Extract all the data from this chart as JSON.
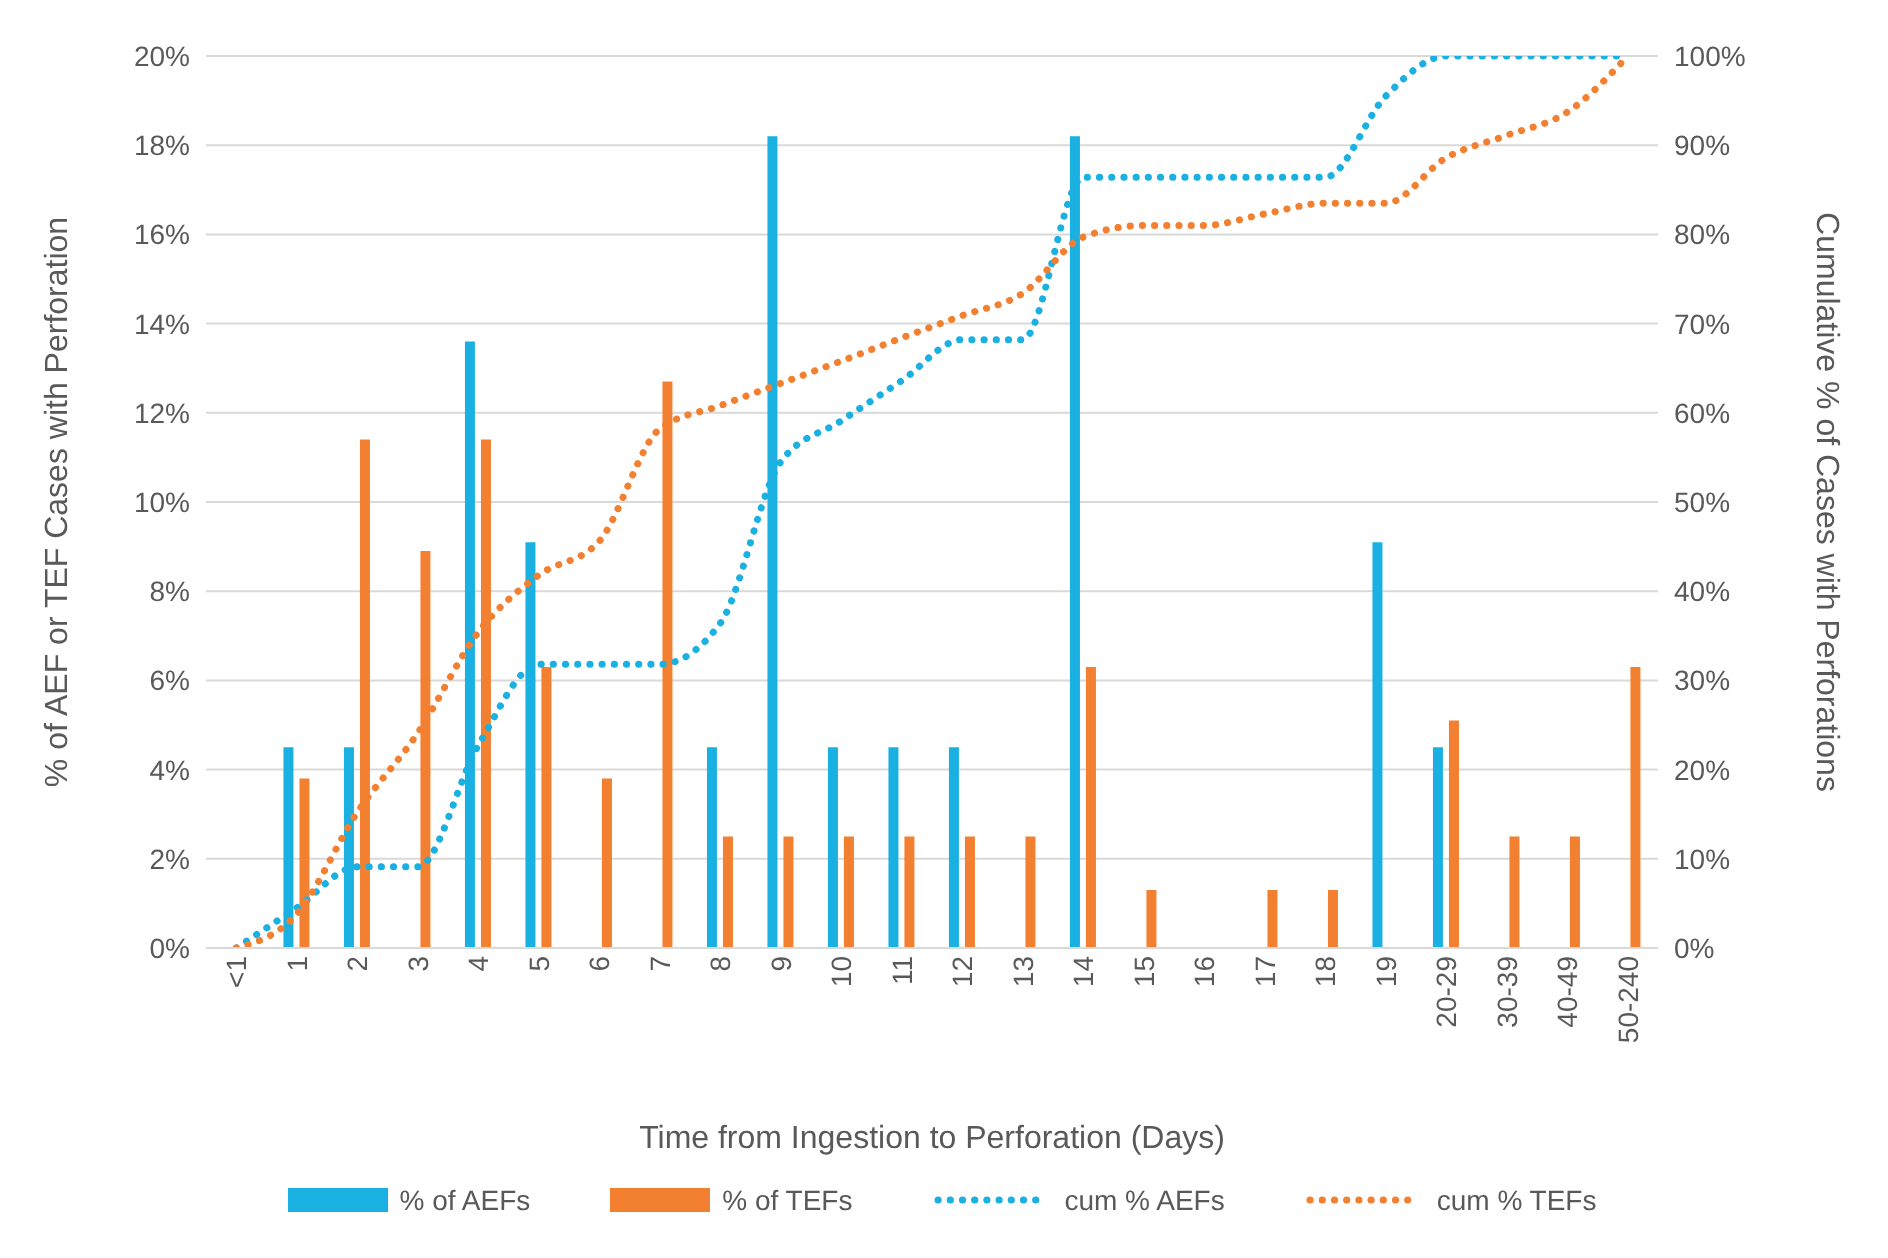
{
  "chart_data": {
    "type": "bar",
    "xlabel": "Time from Ingestion to Perforation (Days)",
    "ylabel": "% of AEF or TEF Cases with Perforation",
    "y2label": "Cumulative % of Cases with Perforations",
    "categories": [
      "<1",
      "1",
      "2",
      "3",
      "4",
      "5",
      "6",
      "7",
      "8",
      "9",
      "10",
      "11",
      "12",
      "13",
      "14",
      "15",
      "16",
      "17",
      "18",
      "19",
      "20-29",
      "30-39",
      "40-49",
      "50-240"
    ],
    "series": [
      {
        "name": "% of AEFs",
        "color": "#1ab0e2",
        "values": [
          0,
          4.5,
          4.5,
          0,
          13.6,
          9.1,
          0,
          0,
          4.5,
          18.2,
          4.5,
          4.5,
          4.5,
          0,
          18.2,
          0,
          0,
          0,
          0,
          9.1,
          4.5,
          0,
          0,
          0
        ]
      },
      {
        "name": "% of TEFs",
        "color": "#f28030",
        "values": [
          0,
          3.8,
          11.4,
          8.9,
          11.4,
          6.3,
          3.8,
          12.7,
          2.5,
          2.5,
          2.5,
          2.5,
          2.5,
          2.5,
          6.3,
          1.3,
          0,
          1.3,
          1.3,
          0,
          5.1,
          2.5,
          2.5,
          6.3
        ]
      },
      {
        "name": "cum % AEFs",
        "type": "line",
        "axis": "y2",
        "line_style": "dotted",
        "color": "#1ab0e2",
        "values": [
          0,
          4.5,
          9.1,
          9.1,
          22.7,
          31.8,
          31.8,
          31.8,
          36.4,
          54.5,
          59.1,
          63.6,
          68.2,
          68.2,
          86.4,
          86.4,
          86.4,
          86.4,
          86.4,
          95.5,
          100,
          100,
          100,
          100
        ]
      },
      {
        "name": "cum % TEFs",
        "type": "line",
        "axis": "y2",
        "line_style": "dotted",
        "color": "#f28030",
        "values": [
          0,
          3.8,
          15.2,
          24.1,
          35.4,
          41.8,
          45.6,
          58.2,
          60.8,
          63.3,
          65.8,
          68.4,
          70.9,
          73.4,
          79.7,
          81,
          81,
          82.3,
          83.5,
          83.5,
          88.6,
          91.1,
          93.7,
          100
        ]
      }
    ],
    "ylim": [
      0,
      20
    ],
    "yticks": [
      {
        "value": 0,
        "label": "0%"
      },
      {
        "value": 2,
        "label": "2%"
      },
      {
        "value": 4,
        "label": "4%"
      },
      {
        "value": 6,
        "label": "6%"
      },
      {
        "value": 8,
        "label": "8%"
      },
      {
        "value": 10,
        "label": "10%"
      },
      {
        "value": 12,
        "label": "12%"
      },
      {
        "value": 14,
        "label": "14%"
      },
      {
        "value": 16,
        "label": "16%"
      },
      {
        "value": 18,
        "label": "18%"
      },
      {
        "value": 20,
        "label": "20%"
      }
    ],
    "y2lim": [
      0,
      100
    ],
    "y2ticks": [
      {
        "value": 0,
        "label": "0%"
      },
      {
        "value": 10,
        "label": "10%"
      },
      {
        "value": 20,
        "label": "20%"
      },
      {
        "value": 30,
        "label": "30%"
      },
      {
        "value": 40,
        "label": "40%"
      },
      {
        "value": 50,
        "label": "50%"
      },
      {
        "value": 60,
        "label": "60%"
      },
      {
        "value": 70,
        "label": "70%"
      },
      {
        "value": 80,
        "label": "80%"
      },
      {
        "value": 90,
        "label": "90%"
      },
      {
        "value": 100,
        "label": "100%"
      }
    ],
    "grid": "y",
    "legend": "bottom",
    "marker": "none"
  }
}
